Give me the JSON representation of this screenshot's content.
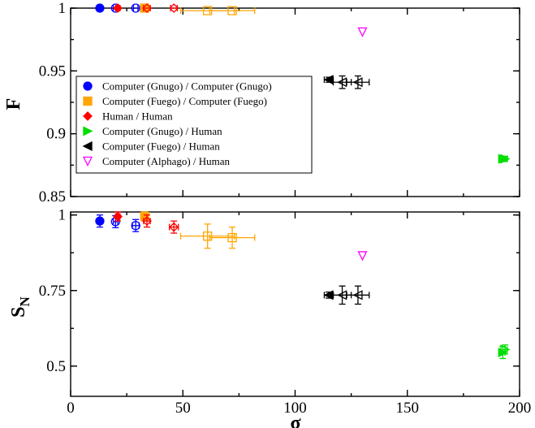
{
  "chart_data": [
    {
      "type": "scatter",
      "panel": "top",
      "ylabel": "F",
      "xlabel": "",
      "xlim": [
        0,
        200
      ],
      "ylim": [
        0.85,
        1.0
      ],
      "yticks": [
        0.85,
        0.9,
        0.95,
        1
      ],
      "ytick_labels": [
        "0.85",
        "0.9",
        "0.95",
        "1"
      ],
      "legend_position": "center-left",
      "series": [
        {
          "name": "Computer (Gnugo) / Computer (Gnugo)",
          "color": "#0000ff",
          "marker": "circle",
          "points": [
            {
              "x": 13,
              "y": 1.0,
              "xerr": 1,
              "yerr": 0
            },
            {
              "x": 20,
              "y": 1.0,
              "xerr": 1,
              "yerr": 0
            },
            {
              "x": 29,
              "y": 1.0,
              "xerr": 1,
              "yerr": 0
            }
          ]
        },
        {
          "name": "Computer (Fuego) / Computer (Fuego)",
          "color": "#ffa500",
          "marker": "square",
          "points": [
            {
              "x": 33,
              "y": 1.0,
              "xerr": 1,
              "yerr": 0
            },
            {
              "x": 61,
              "y": 0.998,
              "xerr": 12,
              "yerr": 0
            },
            {
              "x": 72,
              "y": 0.998,
              "xerr": 10,
              "yerr": 0
            }
          ]
        },
        {
          "name": "Human / Human",
          "color": "#ff0000",
          "marker": "diamond",
          "points": [
            {
              "x": 21,
              "y": 1.0,
              "xerr": 1,
              "yerr": 0
            },
            {
              "x": 34,
              "y": 1.0,
              "xerr": 1.5,
              "yerr": 0
            },
            {
              "x": 46,
              "y": 1.0,
              "xerr": 1.5,
              "yerr": 0
            }
          ]
        },
        {
          "name": "Computer (Gnugo) / Human",
          "color": "#00dd00",
          "marker": "triangle-right",
          "points": [
            {
              "x": 192.5,
              "y": 0.88,
              "xerr": 1,
              "yerr": 0.002
            },
            {
              "x": 193.5,
              "y": 0.88,
              "xerr": 1,
              "yerr": 0.002
            }
          ]
        },
        {
          "name": "Computer (Fuego) / Human",
          "color": "#000000",
          "marker": "triangle-left",
          "points": [
            {
              "x": 115,
              "y": 0.943,
              "xerr": 2,
              "yerr": 0.002
            },
            {
              "x": 121,
              "y": 0.941,
              "xerr": 4,
              "yerr": 0.005
            },
            {
              "x": 128,
              "y": 0.941,
              "xerr": 5,
              "yerr": 0.005
            }
          ]
        },
        {
          "name": "Computer (Alphago) / Human",
          "color": "#ff00ff",
          "marker": "triangle-down",
          "points": [
            {
              "x": 130,
              "y": 0.981,
              "xerr": 0,
              "yerr": 0
            }
          ]
        }
      ]
    },
    {
      "type": "scatter",
      "panel": "bottom",
      "ylabel": "S",
      "ylabel_sub": "N",
      "xlabel": "σ",
      "xlim": [
        0,
        200
      ],
      "ylim": [
        0.4,
        1.01
      ],
      "yticks": [
        0.5,
        0.75,
        1
      ],
      "ytick_labels": [
        "0.5",
        "0.75",
        "1"
      ],
      "xticks": [
        0,
        50,
        100,
        150,
        200
      ],
      "xtick_labels": [
        "0",
        "50",
        "100",
        "150",
        "200"
      ],
      "series": [
        {
          "name": "Computer (Gnugo) / Computer (Gnugo)",
          "color": "#0000ff",
          "marker": "circle",
          "points": [
            {
              "x": 13,
              "y": 0.98,
              "xerr": 1,
              "yerr": 0.02
            },
            {
              "x": 20,
              "y": 0.978,
              "xerr": 1,
              "yerr": 0.02
            },
            {
              "x": 29,
              "y": 0.965,
              "xerr": 1.5,
              "yerr": 0.02
            }
          ]
        },
        {
          "name": "Computer (Fuego) / Computer (Fuego)",
          "color": "#ffa500",
          "marker": "square",
          "points": [
            {
              "x": 33,
              "y": 0.995,
              "xerr": 1,
              "yerr": 0.015
            },
            {
              "x": 61,
              "y": 0.93,
              "xerr": 12,
              "yerr": 0.04
            },
            {
              "x": 72,
              "y": 0.925,
              "xerr": 10,
              "yerr": 0.035
            }
          ]
        },
        {
          "name": "Human / Human",
          "color": "#ff0000",
          "marker": "diamond",
          "points": [
            {
              "x": 21,
              "y": 0.995,
              "xerr": 1,
              "yerr": 0.015
            },
            {
              "x": 34,
              "y": 0.98,
              "xerr": 1.5,
              "yerr": 0.02
            },
            {
              "x": 46,
              "y": 0.96,
              "xerr": 2,
              "yerr": 0.02
            }
          ]
        },
        {
          "name": "Computer (Gnugo) / Human",
          "color": "#00dd00",
          "marker": "triangle-right",
          "points": [
            {
              "x": 192.5,
              "y": 0.545,
              "xerr": 1,
              "yerr": 0.02
            },
            {
              "x": 193.5,
              "y": 0.555,
              "xerr": 1,
              "yerr": 0.015
            }
          ]
        },
        {
          "name": "Computer (Fuego) / Human",
          "color": "#000000",
          "marker": "triangle-left",
          "points": [
            {
              "x": 115,
              "y": 0.735,
              "xerr": 2,
              "yerr": 0.01
            },
            {
              "x": 121,
              "y": 0.735,
              "xerr": 4,
              "yerr": 0.03
            },
            {
              "x": 128,
              "y": 0.735,
              "xerr": 5,
              "yerr": 0.03
            }
          ]
        },
        {
          "name": "Computer (Alphago) / Human",
          "color": "#ff00ff",
          "marker": "triangle-down",
          "points": [
            {
              "x": 130,
              "y": 0.865,
              "xerr": 0,
              "yerr": 0
            }
          ]
        }
      ]
    }
  ]
}
